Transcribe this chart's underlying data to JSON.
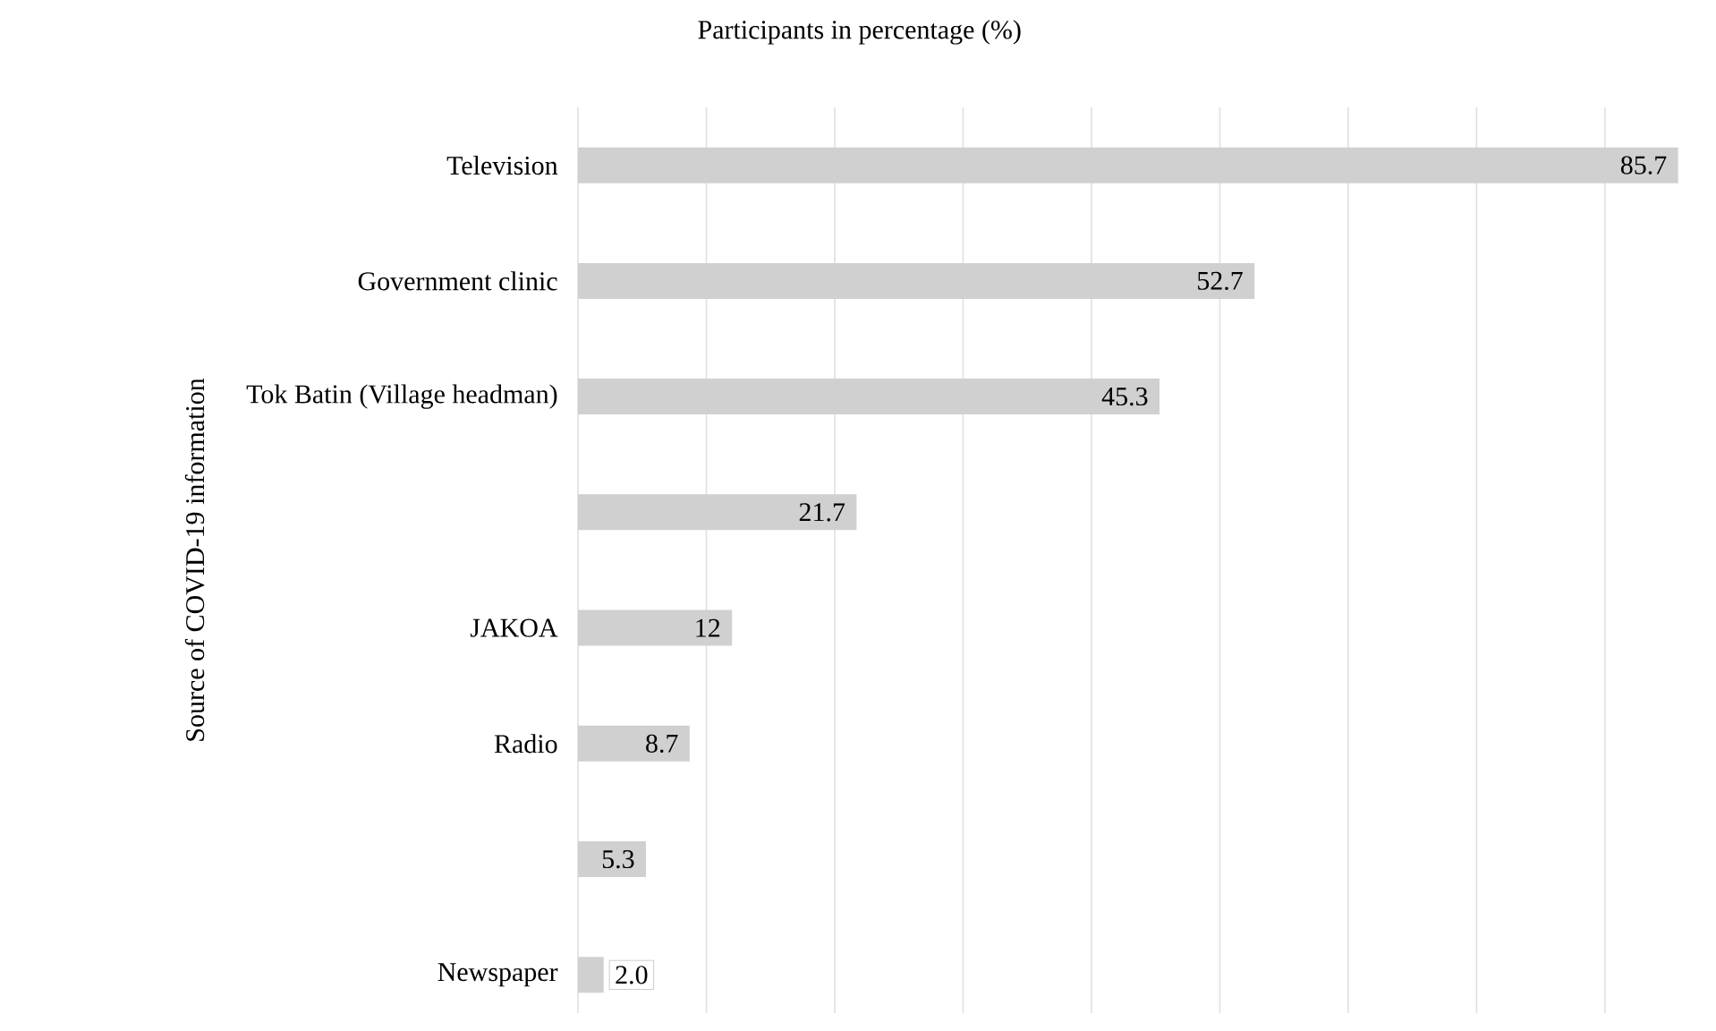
{
  "chart_data": {
    "type": "bar",
    "orientation": "horizontal",
    "xlabel": "Participants in percentage (%)",
    "ylabel": "Source of COVID-19 information",
    "categories": [
      "Television",
      "Government clinic",
      "Tok Batin (Village headman)",
      null,
      "JAKOA",
      "Radio",
      null,
      "Newspaper"
    ],
    "values": [
      85.7,
      52.7,
      45.3,
      21.7,
      12,
      8.7,
      5.3,
      2.0
    ],
    "value_labels": [
      "85.7",
      "52.7",
      "45.3",
      "21.7",
      "12",
      "8.7",
      "5.3",
      "2.0"
    ],
    "color": "#d0d0d0",
    "xlim": [
      0,
      86
    ],
    "xticks": [
      {
        "value": 0,
        "label": null
      },
      {
        "value": 10,
        "label": null
      },
      {
        "value": 20,
        "label": null
      },
      {
        "value": 30,
        "label": null
      },
      {
        "value": 40,
        "label": null
      },
      {
        "value": 50,
        "label": null
      },
      {
        "value": 60,
        "label": null
      },
      {
        "value": 70,
        "label": null
      },
      {
        "value": 80,
        "label": null
      }
    ],
    "grid": "x",
    "tick_labels": "y"
  }
}
